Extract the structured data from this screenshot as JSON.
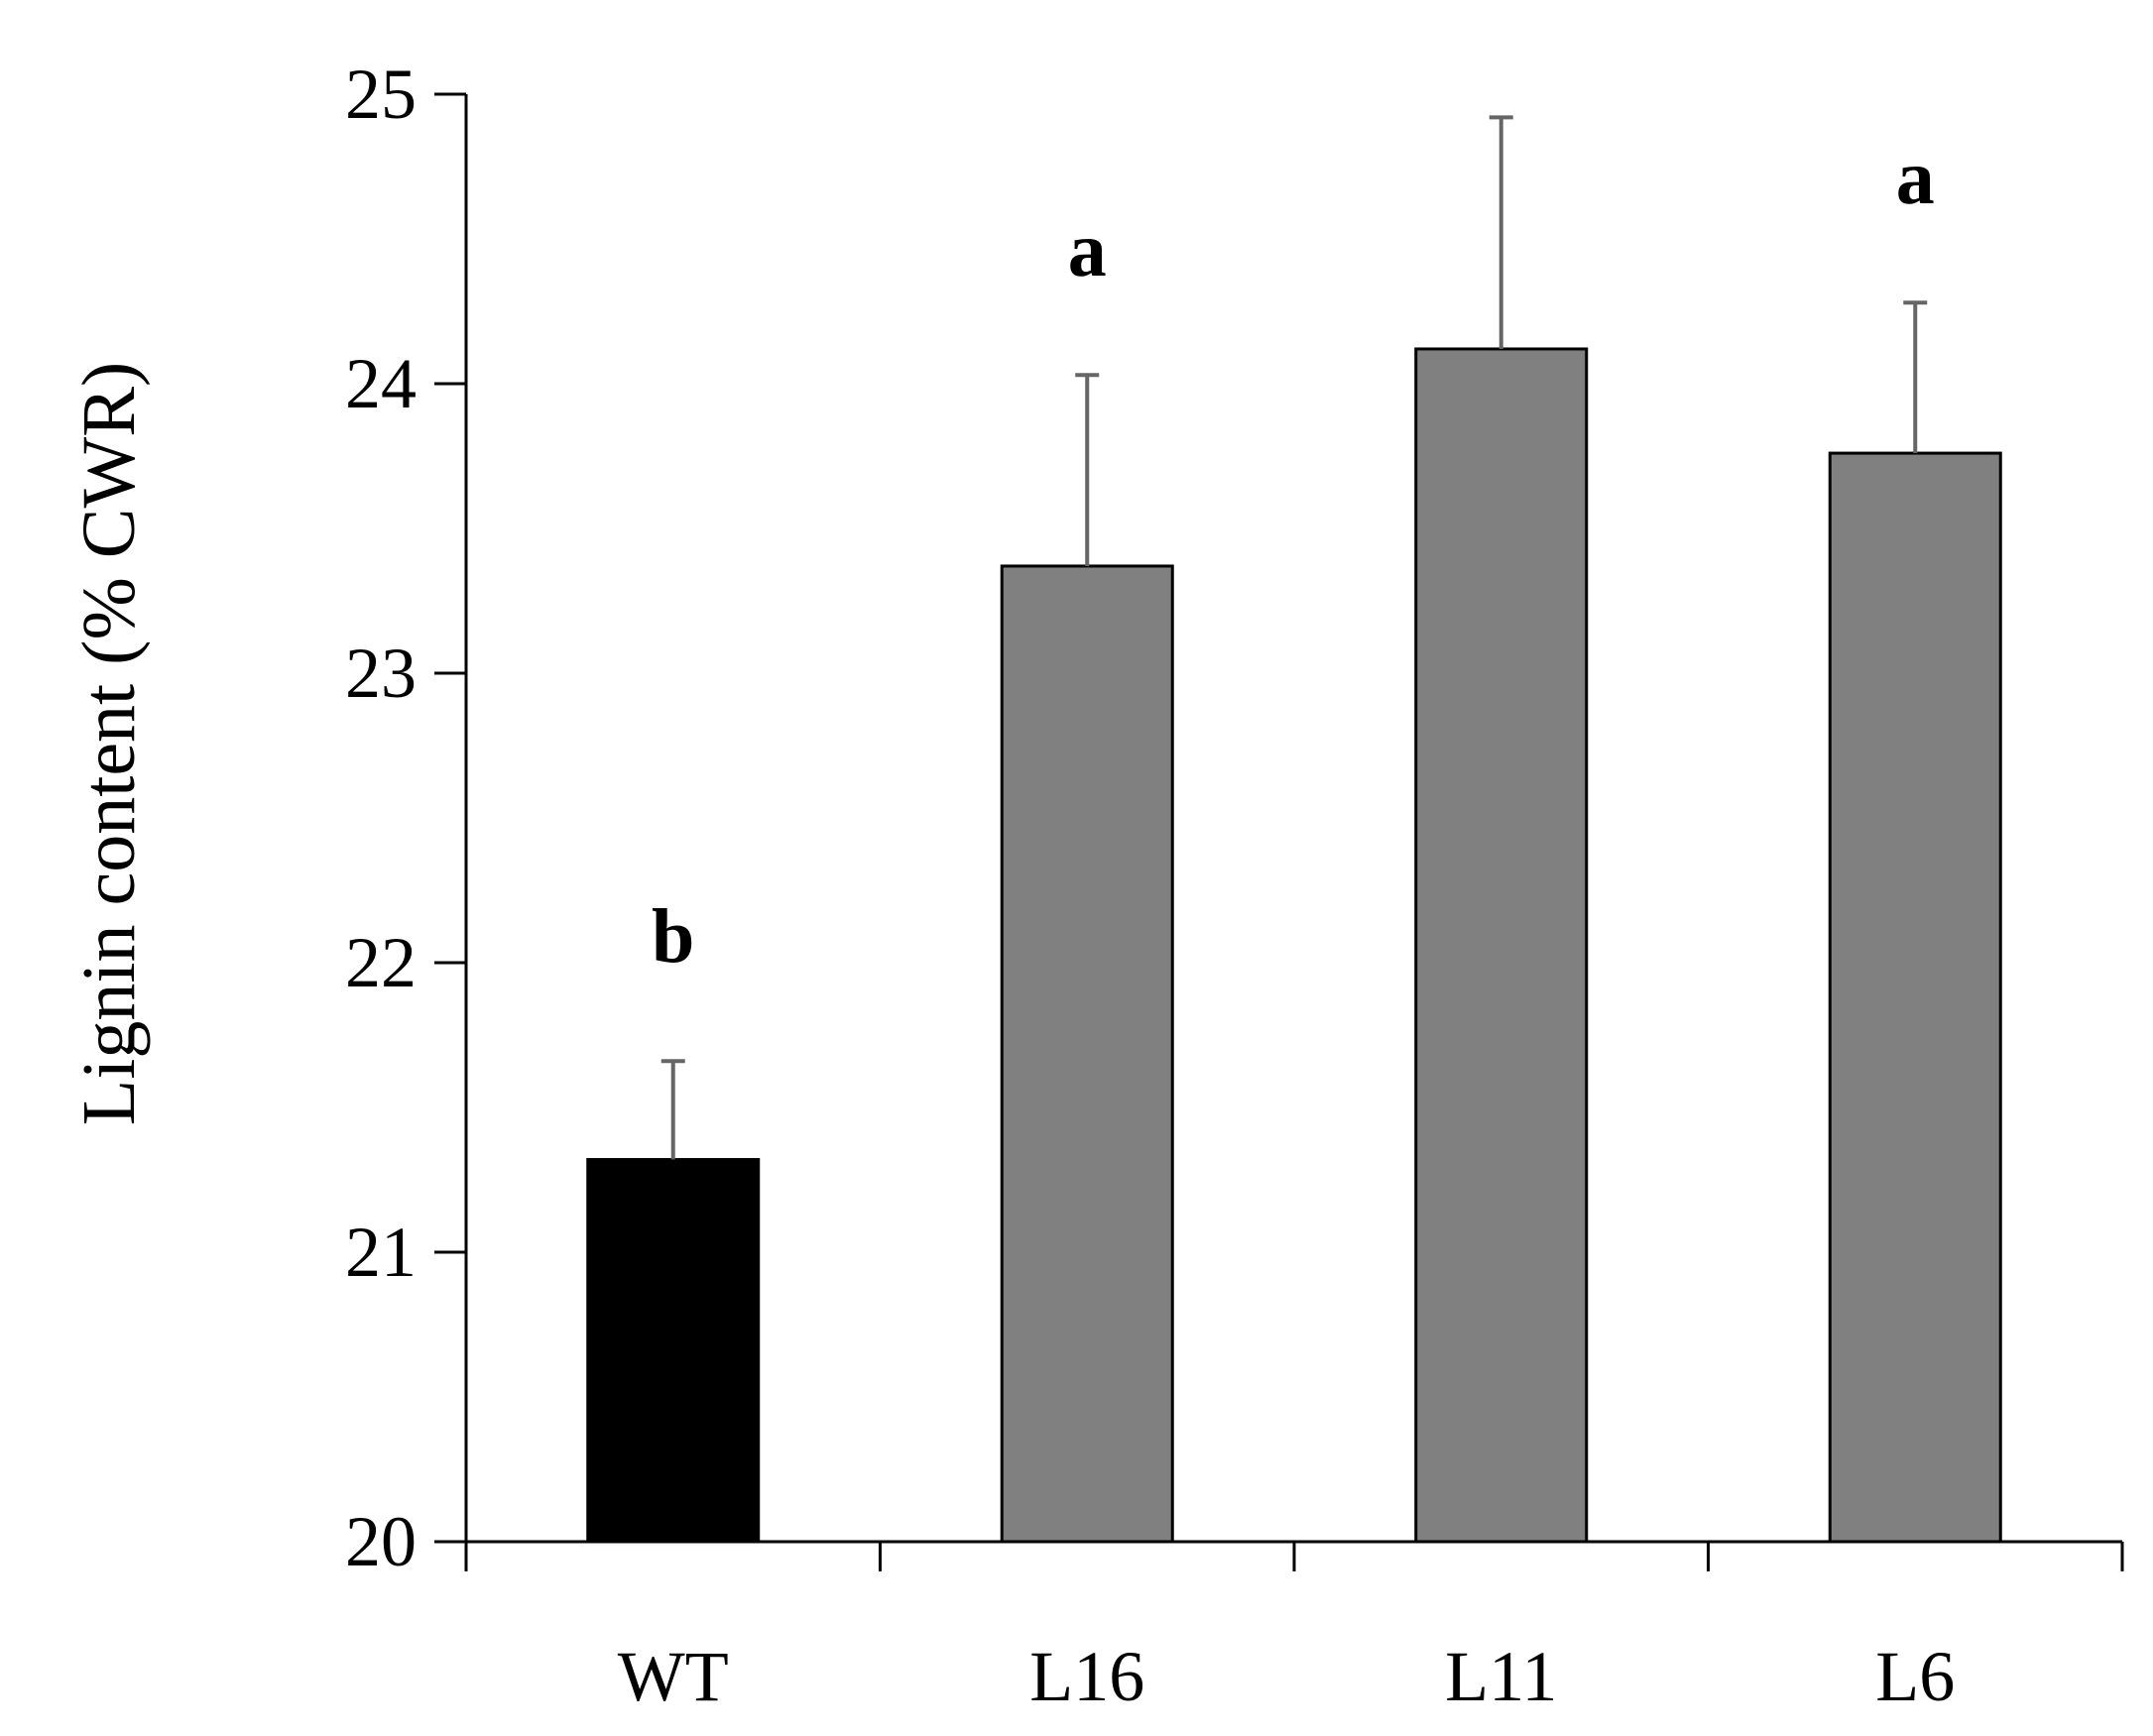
{
  "chart_data": {
    "type": "bar",
    "title": "",
    "xlabel": "",
    "ylabel": "Lignin content  (% CWR)",
    "categories": [
      "WT",
      "L16",
      "L11",
      "L6"
    ],
    "values": [
      21.32,
      23.37,
      24.12,
      23.76
    ],
    "errors": [
      0.34,
      0.66,
      0.8,
      0.52
    ],
    "significance": [
      "b",
      "a",
      "",
      "a"
    ],
    "colors": [
      "#000000",
      "#808080",
      "#808080",
      "#808080"
    ],
    "ylim": [
      20,
      25
    ],
    "yticks": [
      20,
      21,
      22,
      23,
      24,
      25
    ],
    "grid": false,
    "legend": "none"
  }
}
